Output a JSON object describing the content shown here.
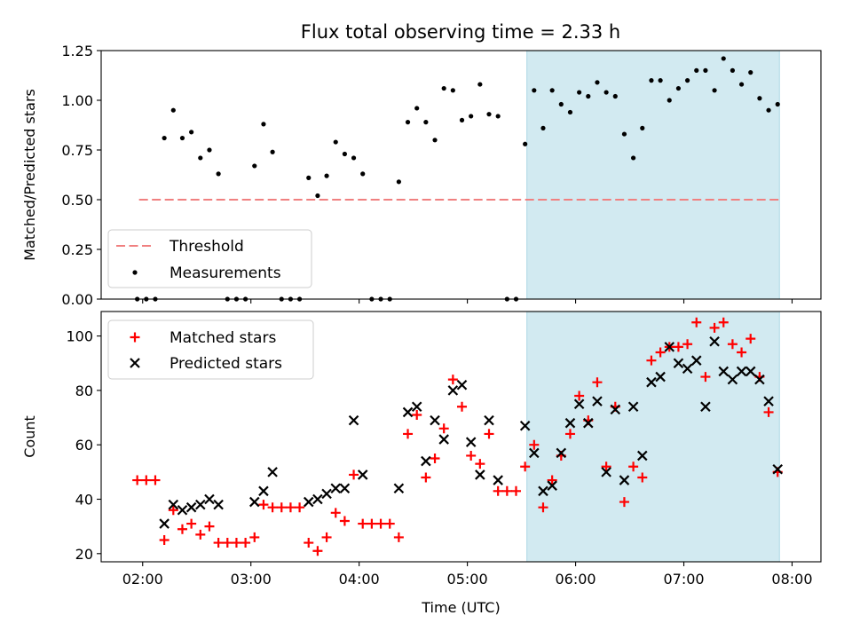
{
  "figure_title": "Flux total observing time = 2.33 h",
  "chart_data": [
    {
      "type": "scatter",
      "title": "Flux total observing time = 2.33 h",
      "xlabel": "",
      "ylabel": "Matched/Predicted stars",
      "xlim": [
        "01:37",
        "08:16"
      ],
      "ylim": [
        0,
        1.25
      ],
      "yticks": [
        0,
        0.25,
        0.5,
        0.75,
        1.0,
        1.25
      ],
      "ytick_labels": [
        "0.00",
        "0.25",
        "0.50",
        "0.75",
        "1.00",
        "1.25"
      ],
      "xticks": [
        "02:00",
        "03:00",
        "04:00",
        "05:00",
        "06:00",
        "07:00",
        "08:00"
      ],
      "shaded_span": {
        "start": "05:33",
        "end": "07:53",
        "color": "#add8e6"
      },
      "legend_position": "lower left",
      "threshold": {
        "name": "Threshold",
        "y": 0.5,
        "x_start": "01:58",
        "x_end": "07:53",
        "color": "#f08080",
        "style": "dashed"
      },
      "series": [
        {
          "name": "Measurements",
          "marker": "dot",
          "color": "#000000",
          "points": [
            [
              "01:57",
              0
            ],
            [
              "02:02",
              0
            ],
            [
              "02:07",
              0
            ],
            [
              "02:12",
              0.81
            ],
            [
              "02:17",
              0.95
            ],
            [
              "02:22",
              0.81
            ],
            [
              "02:27",
              0.84
            ],
            [
              "02:32",
              0.71
            ],
            [
              "02:37",
              0.75
            ],
            [
              "02:42",
              0.63
            ],
            [
              "02:47",
              0
            ],
            [
              "02:52",
              0
            ],
            [
              "02:57",
              0
            ],
            [
              "03:02",
              0.67
            ],
            [
              "03:07",
              0.88
            ],
            [
              "03:12",
              0.74
            ],
            [
              "03:17",
              0
            ],
            [
              "03:22",
              0
            ],
            [
              "03:27",
              0
            ],
            [
              "03:32",
              0.61
            ],
            [
              "03:37",
              0.52
            ],
            [
              "03:42",
              0.62
            ],
            [
              "03:47",
              0.79
            ],
            [
              "03:52",
              0.73
            ],
            [
              "03:57",
              0.71
            ],
            [
              "04:02",
              0.63
            ],
            [
              "04:07",
              0
            ],
            [
              "04:12",
              0
            ],
            [
              "04:17",
              0
            ],
            [
              "04:22",
              0.59
            ],
            [
              "04:27",
              0.89
            ],
            [
              "04:32",
              0.96
            ],
            [
              "04:37",
              0.89
            ],
            [
              "04:42",
              0.8
            ],
            [
              "04:47",
              1.06
            ],
            [
              "04:52",
              1.05
            ],
            [
              "04:57",
              0.9
            ],
            [
              "05:02",
              0.92
            ],
            [
              "05:07",
              1.08
            ],
            [
              "05:12",
              0.93
            ],
            [
              "05:17",
              0.92
            ],
            [
              "05:22",
              0
            ],
            [
              "05:27",
              0
            ],
            [
              "05:32",
              0.78
            ],
            [
              "05:37",
              1.05
            ],
            [
              "05:42",
              0.86
            ],
            [
              "05:47",
              1.05
            ],
            [
              "05:52",
              0.98
            ],
            [
              "05:57",
              0.94
            ],
            [
              "06:02",
              1.04
            ],
            [
              "06:07",
              1.02
            ],
            [
              "06:12",
              1.09
            ],
            [
              "06:17",
              1.04
            ],
            [
              "06:22",
              1.02
            ],
            [
              "06:27",
              0.83
            ],
            [
              "06:32",
              0.71
            ],
            [
              "06:37",
              0.86
            ],
            [
              "06:42",
              1.1
            ],
            [
              "06:47",
              1.1
            ],
            [
              "06:52",
              1.0
            ],
            [
              "06:57",
              1.06
            ],
            [
              "07:02",
              1.1
            ],
            [
              "07:07",
              1.15
            ],
            [
              "07:12",
              1.15
            ],
            [
              "07:17",
              1.05
            ],
            [
              "07:22",
              1.21
            ],
            [
              "07:27",
              1.15
            ],
            [
              "07:32",
              1.08
            ],
            [
              "07:37",
              1.14
            ],
            [
              "07:42",
              1.01
            ],
            [
              "07:47",
              0.95
            ],
            [
              "07:52",
              0.98
            ]
          ]
        }
      ]
    },
    {
      "type": "scatter",
      "title": "",
      "xlabel": "Time (UTC)",
      "ylabel": "Count",
      "xlim": [
        "01:37",
        "08:16"
      ],
      "ylim": [
        17,
        109
      ],
      "yticks": [
        20,
        40,
        60,
        80,
        100
      ],
      "ytick_labels": [
        "20",
        "40",
        "60",
        "80",
        "100"
      ],
      "xticks": [
        "02:00",
        "03:00",
        "04:00",
        "05:00",
        "06:00",
        "07:00",
        "08:00"
      ],
      "xtick_labels": [
        "02:00",
        "03:00",
        "04:00",
        "05:00",
        "06:00",
        "07:00",
        "08:00"
      ],
      "shaded_span": {
        "start": "05:33",
        "end": "07:53",
        "color": "#add8e6"
      },
      "legend_position": "upper left",
      "series": [
        {
          "name": "Matched stars",
          "marker": "plus",
          "color": "#ff0000",
          "points": [
            [
              "01:57",
              47
            ],
            [
              "02:02",
              47
            ],
            [
              "02:07",
              47
            ],
            [
              "02:12",
              25
            ],
            [
              "02:17",
              36
            ],
            [
              "02:22",
              29
            ],
            [
              "02:27",
              31
            ],
            [
              "02:32",
              27
            ],
            [
              "02:37",
              30
            ],
            [
              "02:42",
              24
            ],
            [
              "02:47",
              24
            ],
            [
              "02:52",
              24
            ],
            [
              "02:57",
              24
            ],
            [
              "03:02",
              26
            ],
            [
              "03:07",
              38
            ],
            [
              "03:12",
              37
            ],
            [
              "03:17",
              37
            ],
            [
              "03:22",
              37
            ],
            [
              "03:27",
              37
            ],
            [
              "03:32",
              24
            ],
            [
              "03:37",
              21
            ],
            [
              "03:42",
              26
            ],
            [
              "03:47",
              35
            ],
            [
              "03:52",
              32
            ],
            [
              "03:57",
              49
            ],
            [
              "04:02",
              31
            ],
            [
              "04:07",
              31
            ],
            [
              "04:12",
              31
            ],
            [
              "04:17",
              31
            ],
            [
              "04:22",
              26
            ],
            [
              "04:27",
              64
            ],
            [
              "04:32",
              71
            ],
            [
              "04:37",
              48
            ],
            [
              "04:42",
              55
            ],
            [
              "04:47",
              66
            ],
            [
              "04:52",
              84
            ],
            [
              "04:57",
              74
            ],
            [
              "05:02",
              56
            ],
            [
              "05:07",
              53
            ],
            [
              "05:12",
              64
            ],
            [
              "05:17",
              43
            ],
            [
              "05:22",
              43
            ],
            [
              "05:27",
              43
            ],
            [
              "05:32",
              52
            ],
            [
              "05:37",
              60
            ],
            [
              "05:42",
              37
            ],
            [
              "05:47",
              47
            ],
            [
              "05:52",
              56
            ],
            [
              "05:57",
              64
            ],
            [
              "06:02",
              78
            ],
            [
              "06:07",
              69
            ],
            [
              "06:12",
              83
            ],
            [
              "06:17",
              52
            ],
            [
              "06:22",
              74
            ],
            [
              "06:27",
              39
            ],
            [
              "06:32",
              52
            ],
            [
              "06:37",
              48
            ],
            [
              "06:42",
              91
            ],
            [
              "06:47",
              94
            ],
            [
              "06:52",
              96
            ],
            [
              "06:57",
              96
            ],
            [
              "07:02",
              97
            ],
            [
              "07:07",
              105
            ],
            [
              "07:12",
              85
            ],
            [
              "07:17",
              103
            ],
            [
              "07:22",
              105
            ],
            [
              "07:27",
              97
            ],
            [
              "07:32",
              94
            ],
            [
              "07:37",
              99
            ],
            [
              "07:42",
              85
            ],
            [
              "07:47",
              72
            ],
            [
              "07:52",
              50
            ]
          ]
        },
        {
          "name": "Predicted stars",
          "marker": "x",
          "color": "#000000",
          "points": [
            [
              "02:12",
              31
            ],
            [
              "02:17",
              38
            ],
            [
              "02:22",
              36
            ],
            [
              "02:27",
              37
            ],
            [
              "02:32",
              38
            ],
            [
              "02:37",
              40
            ],
            [
              "02:42",
              38
            ],
            [
              "03:02",
              39
            ],
            [
              "03:07",
              43
            ],
            [
              "03:12",
              50
            ],
            [
              "03:32",
              39
            ],
            [
              "03:37",
              40
            ],
            [
              "03:42",
              42
            ],
            [
              "03:47",
              44
            ],
            [
              "03:52",
              44
            ],
            [
              "03:57",
              69
            ],
            [
              "04:02",
              49
            ],
            [
              "04:22",
              44
            ],
            [
              "04:27",
              72
            ],
            [
              "04:32",
              74
            ],
            [
              "04:37",
              54
            ],
            [
              "04:42",
              69
            ],
            [
              "04:47",
              62
            ],
            [
              "04:52",
              80
            ],
            [
              "04:57",
              82
            ],
            [
              "05:02",
              61
            ],
            [
              "05:07",
              49
            ],
            [
              "05:12",
              69
            ],
            [
              "05:17",
              47
            ],
            [
              "05:32",
              67
            ],
            [
              "05:37",
              57
            ],
            [
              "05:42",
              43
            ],
            [
              "05:47",
              45
            ],
            [
              "05:52",
              57
            ],
            [
              "05:57",
              68
            ],
            [
              "06:02",
              75
            ],
            [
              "06:07",
              68
            ],
            [
              "06:12",
              76
            ],
            [
              "06:17",
              50
            ],
            [
              "06:22",
              73
            ],
            [
              "06:27",
              47
            ],
            [
              "06:32",
              74
            ],
            [
              "06:37",
              56
            ],
            [
              "06:42",
              83
            ],
            [
              "06:47",
              85
            ],
            [
              "06:52",
              96
            ],
            [
              "06:57",
              90
            ],
            [
              "07:02",
              88
            ],
            [
              "07:07",
              91
            ],
            [
              "07:12",
              74
            ],
            [
              "07:17",
              98
            ],
            [
              "07:22",
              87
            ],
            [
              "07:27",
              84
            ],
            [
              "07:32",
              87
            ],
            [
              "07:37",
              87
            ],
            [
              "07:42",
              84
            ],
            [
              "07:47",
              76
            ],
            [
              "07:52",
              51
            ]
          ]
        }
      ]
    }
  ]
}
